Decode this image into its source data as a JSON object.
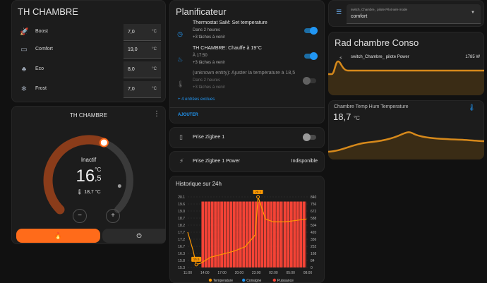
{
  "th_card": {
    "title": "TH CHAMBRE",
    "rows": [
      {
        "label": "Boost",
        "value": "7,0",
        "unit": "°C",
        "icon": "rocket-icon"
      },
      {
        "label": "Comfort",
        "value": "19,0",
        "unit": "°C",
        "icon": "sofa-icon"
      },
      {
        "label": "Eco",
        "value": "8,0",
        "unit": "°C",
        "icon": "leaf-icon"
      },
      {
        "label": "Frost",
        "value": "7,0",
        "unit": "°C",
        "icon": "snowflake-icon"
      }
    ]
  },
  "thermostat": {
    "name": "TH CHAMBRE",
    "state": "Inactif",
    "target_int": "16",
    "target_dec": "5",
    "target_sep": ",",
    "unit": "°C",
    "current": "18,7 °C",
    "dial_target_fraction": 0.58,
    "dial_current_fraction": 0.87,
    "minus_label": "−",
    "plus_label": "+",
    "colors": {
      "heat": "#ff6b1a",
      "dial": "#8a3c1a"
    }
  },
  "planner": {
    "title": "Planificateur",
    "items": [
      {
        "title": "Thermostat SaM: Set temperature",
        "line1": "Dans 2 heures",
        "line2": "+3 tâches à venir",
        "icon": "calendar-clock-icon",
        "on": true
      },
      {
        "title": "TH CHAMBRE: Chauffe à 19°C",
        "line1": "À 17:50",
        "line2": "+3 tâches à venir",
        "icon": "fire-icon",
        "on": true
      },
      {
        "title": "(unknown entity): Ajuster la température à 18,5",
        "line1": "Dans 2 heures",
        "line2": "+3 tâches à venir",
        "icon": "thermometer-icon",
        "on": false
      }
    ],
    "more": "+ 4 entrées exclues",
    "add": "AJOUTER"
  },
  "plug": {
    "name": "Prise Zigbee 1",
    "icon": "power-socket-icon",
    "on": false
  },
  "power": {
    "name": "Prise Zigbee 1 Power",
    "value": "Indisponible",
    "icon": "lightning-icon"
  },
  "history": {
    "title": "Historique sur 24h",
    "legend": [
      {
        "label": "Temperature",
        "color": "#ff9800"
      },
      {
        "label": "Consigne",
        "color": "#2196f3"
      },
      {
        "label": "Puissance",
        "color": "#f44336"
      }
    ]
  },
  "chart_data": {
    "type": "bar",
    "x_ticks": [
      "11:00",
      "14:00",
      "17:00",
      "20:00",
      "23:00",
      "02:00",
      "05:00",
      "08:00"
    ],
    "y_left_ticks": [
      "20.1",
      "19.6",
      "19.0",
      "18.7",
      "18.2",
      "17.7",
      "17.2",
      "16.7",
      "16.3",
      "15.8",
      "15.3"
    ],
    "y_right_ticks": [
      "840",
      "756",
      "672",
      "588",
      "504",
      "420",
      "336",
      "252",
      "168",
      "84",
      "0"
    ],
    "ylim_left": [
      15.3,
      20.1
    ],
    "ylim_right": [
      0,
      840
    ],
    "series": [
      {
        "name": "Puissance",
        "axis": "right",
        "color": "#f44336",
        "periods": [
          [
            0.5,
            1.5,
            0
          ],
          [
            1.5,
            2.4,
            0
          ],
          [
            2.4,
            12.2,
            785
          ],
          [
            12.2,
            16.8,
            785
          ],
          [
            16.8,
            20.8,
            785
          ]
        ]
      },
      {
        "name": "Temperature",
        "axis": "left",
        "color": "#ff9800",
        "points": [
          [
            0,
            17.7
          ],
          [
            0.9,
            16.5
          ],
          [
            1.5,
            15.5
          ],
          [
            2.3,
            15.6
          ],
          [
            4,
            16.0
          ],
          [
            6,
            16.2
          ],
          [
            8,
            16.4
          ],
          [
            10,
            16.7
          ],
          [
            11.8,
            17.5
          ],
          [
            12.3,
            20.1
          ],
          [
            13.6,
            18.6
          ],
          [
            15,
            18.4
          ],
          [
            17,
            18.4
          ],
          [
            19,
            18.5
          ],
          [
            20.8,
            18.6
          ]
        ]
      }
    ],
    "annotations": [
      {
        "text": "15.5",
        "x": 1.5,
        "y": 15.5
      },
      {
        "text": "20.1",
        "x": 12.3,
        "y": 20.1
      }
    ],
    "legend_position": "bottom"
  },
  "mode_select": {
    "label": "switch_Chambre_ pilote Pilot wire mode",
    "value": "comfort",
    "icon": "list-icon"
  },
  "rad_card": {
    "title": "Rad chambre Conso",
    "entity": "switch_Chambre_ pilote Power",
    "value": "1785 W",
    "icon": "lightning-icon"
  },
  "temp_card": {
    "name": "Chambre Temp Hum Temperature",
    "value": "18,7",
    "unit": "°C",
    "icon": "thermometer-icon"
  }
}
